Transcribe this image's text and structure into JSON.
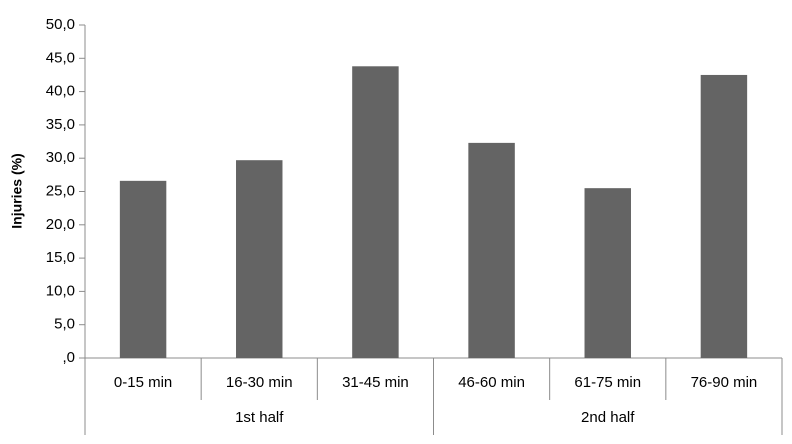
{
  "chart_data": {
    "type": "bar",
    "y_label": "Injuries (%)",
    "categories": [
      "0-15 min",
      "16-30 min",
      "31-45 min",
      "46-60 min",
      "61-75 min",
      "76-90 min"
    ],
    "groups": [
      "1st half",
      "2nd half"
    ],
    "values": [
      26.6,
      29.7,
      43.8,
      32.3,
      25.5,
      42.5
    ],
    "color": "#646464",
    "ylim": [
      0,
      50
    ],
    "yticks": [
      {
        "value": 0,
        "label": ",0"
      },
      {
        "value": 5,
        "label": "5,0"
      },
      {
        "value": 10,
        "label": "10,0"
      },
      {
        "value": 15,
        "label": "15,0"
      },
      {
        "value": 20,
        "label": "20,0"
      },
      {
        "value": 25,
        "label": "25,0"
      },
      {
        "value": 30,
        "label": "30,0"
      },
      {
        "value": 35,
        "label": "35,0"
      },
      {
        "value": 40,
        "label": "40,0"
      },
      {
        "value": 45,
        "label": "45,0"
      },
      {
        "value": 50,
        "label": "50,0"
      }
    ],
    "grid": false
  }
}
